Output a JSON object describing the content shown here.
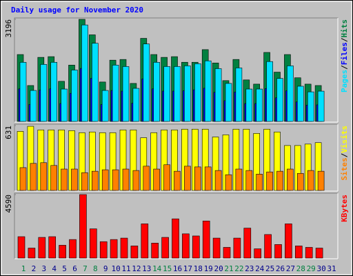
{
  "chart_data": [
    {
      "type": "bar",
      "title": "Daily usage for November 2020",
      "ylim": [
        0,
        3196
      ],
      "yticks": [
        3196
      ],
      "legend_separator": "/",
      "series": [
        {
          "name": "Hits",
          "color": "#008040",
          "values": [
            2094,
            1124,
            2006,
            2028,
            1256,
            1763,
            3196,
            2711,
            1234,
            1918,
            1940,
            1190,
            2601,
            2094,
            2006,
            2028,
            1852,
            1852,
            2248,
            1830,
            1278,
            1940,
            1300,
            1168,
            2160,
            1543,
            2094,
            1367,
            1168,
            1124,
            null
          ]
        },
        {
          "name": "Files",
          "color": "#0000ff",
          "values": [
            1020,
            530,
            980,
            1020,
            560,
            880,
            1660,
            1350,
            530,
            970,
            950,
            570,
            1330,
            1020,
            950,
            950,
            960,
            990,
            1040,
            910,
            650,
            920,
            560,
            560,
            1030,
            740,
            960,
            610,
            510,
            520,
            null
          ]
        },
        {
          "name": "Pages",
          "color": "#00e0ff",
          "values": [
            1851,
            970,
            1785,
            1851,
            1014,
            1609,
            3020,
            2447,
            970,
            1763,
            1719,
            1036,
            2425,
            1851,
            1719,
            1719,
            1741,
            1807,
            1896,
            1653,
            1190,
            1675,
            1014,
            1014,
            1874,
            1345,
            1741,
            1102,
            926,
            948,
            null
          ]
        }
      ]
    },
    {
      "type": "bar",
      "ylim": [
        0,
        631
      ],
      "yticks": [
        631
      ],
      "series": [
        {
          "name": "Visits",
          "color": "#ffff00",
          "values": [
            575,
            624,
            589,
            589,
            589,
            582,
            562,
            569,
            562,
            562,
            589,
            589,
            513,
            562,
            589,
            589,
            596,
            596,
            596,
            520,
            541,
            596,
            596,
            555,
            596,
            569,
            437,
            437,
            451,
            465,
            null
          ]
        },
        {
          "name": "Sites",
          "color": "#ff8000",
          "values": [
            222,
            263,
            270,
            243,
            208,
            208,
            173,
            187,
            201,
            201,
            208,
            194,
            236,
            208,
            250,
            187,
            236,
            229,
            229,
            194,
            153,
            208,
            194,
            159,
            180,
            187,
            208,
            166,
            194,
            187,
            null
          ]
        }
      ]
    },
    {
      "type": "bar",
      "ylim": [
        0,
        4590
      ],
      "yticks": [
        4590
      ],
      "categories": [
        "1",
        "2",
        "3",
        "4",
        "5",
        "6",
        "7",
        "8",
        "9",
        "10",
        "11",
        "12",
        "13",
        "14",
        "15",
        "16",
        "17",
        "18",
        "19",
        "20",
        "21",
        "22",
        "23",
        "24",
        "25",
        "26",
        "27",
        "28",
        "29",
        "30",
        "31"
      ],
      "category_colors": [
        "#008040",
        "#00008b",
        "#00008b",
        "#00008b",
        "#00008b",
        "#00008b",
        "#008040",
        "#008040",
        "#00008b",
        "#00008b",
        "#00008b",
        "#00008b",
        "#00008b",
        "#008040",
        "#008040",
        "#00008b",
        "#00008b",
        "#00008b",
        "#00008b",
        "#00008b",
        "#008040",
        "#008040",
        "#00008b",
        "#00008b",
        "#00008b",
        "#00008b",
        "#00008b",
        "#008040",
        "#008040",
        "#00008b",
        "#00008b"
      ],
      "series": [
        {
          "name": "KBytes",
          "color": "#ff0000",
          "values": [
            1547,
            722,
            1496,
            1547,
            928,
            1341,
            4590,
            2114,
            1186,
            1341,
            1444,
            877,
            2475,
            1083,
            1496,
            2836,
            1753,
            1599,
            2682,
            1444,
            774,
            1444,
            2166,
            670,
            1702,
            980,
            2475,
            877,
            774,
            722,
            null
          ]
        }
      ]
    }
  ]
}
